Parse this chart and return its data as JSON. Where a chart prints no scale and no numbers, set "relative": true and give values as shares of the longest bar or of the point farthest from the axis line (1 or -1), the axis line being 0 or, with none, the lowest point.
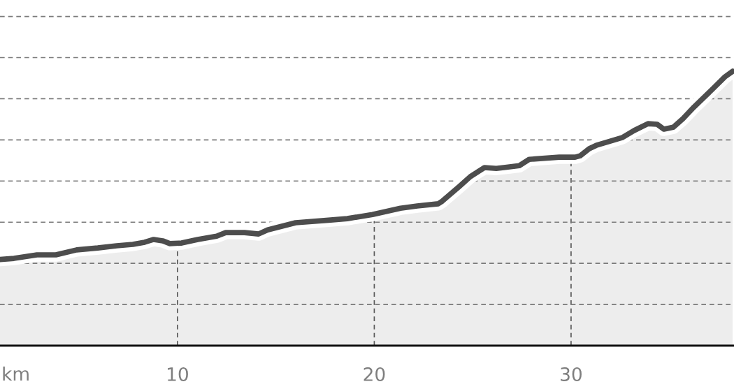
{
  "chart_data": {
    "type": "area",
    "relative": true,
    "xlabel": "km",
    "x": [
      0.98,
      1.69,
      2.86,
      3.82,
      4.88,
      5.95,
      6.91,
      7.73,
      8.33,
      8.79,
      9.25,
      9.61,
      10.21,
      11.03,
      11.99,
      12.45,
      13.41,
      14.12,
      14.58,
      16.0,
      17.78,
      18.63,
      19.91,
      21.33,
      22.18,
      23.25,
      23.46,
      24.32,
      24.88,
      25.6,
      26.2,
      26.8,
      27.37,
      27.87,
      29.4,
      30.21,
      30.46,
      30.92,
      31.28,
      32.59,
      33.2,
      33.91,
      34.37,
      34.72,
      35.19,
      35.68,
      36.25,
      37.1,
      37.82,
      38.21
    ],
    "series": [
      {
        "color": "#4d4d4d",
        "values": [
          0.314,
          0.318,
          0.331,
          0.331,
          0.349,
          0.356,
          0.364,
          0.369,
          0.377,
          0.387,
          0.382,
          0.372,
          0.374,
          0.387,
          0.399,
          0.412,
          0.412,
          0.407,
          0.422,
          0.448,
          0.458,
          0.463,
          0.478,
          0.501,
          0.509,
          0.517,
          0.527,
          0.58,
          0.616,
          0.649,
          0.646,
          0.651,
          0.656,
          0.679,
          0.687,
          0.687,
          0.692,
          0.718,
          0.73,
          0.758,
          0.784,
          0.809,
          0.807,
          0.789,
          0.796,
          0.827,
          0.87,
          0.929,
          0.98,
          1.0
        ]
      }
    ],
    "xlim": [
      0.98,
      38.28
    ],
    "xticks": [
      10,
      20,
      30
    ],
    "grid": true,
    "tick_labels": "x",
    "line_style": "solid"
  }
}
